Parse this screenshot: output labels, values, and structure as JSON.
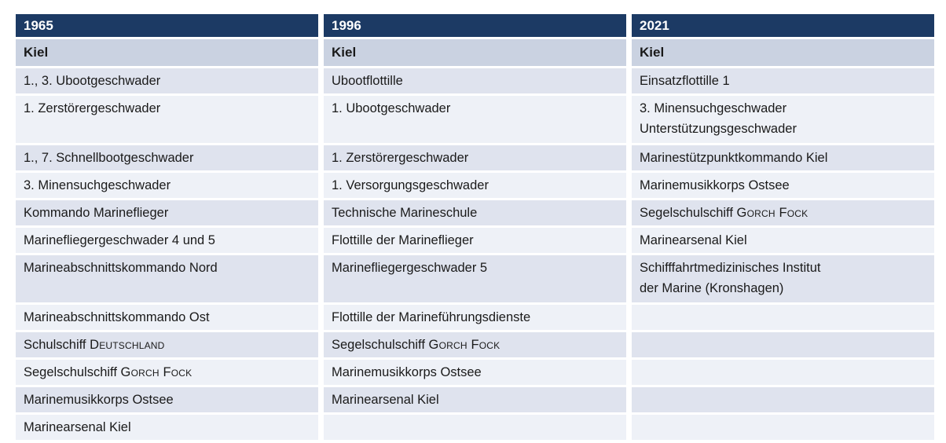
{
  "table": {
    "years": [
      "1965",
      "1996",
      "2021"
    ],
    "locations": [
      "Kiel",
      "Kiel",
      "Kiel"
    ],
    "colors": {
      "header_bg": "#1c3a64",
      "header_text": "#ffffff",
      "location_bg": "#cad2e1",
      "row_dark_bg": "#dfe3ee",
      "row_light_bg": "#eef1f7",
      "text": "#1a1a1a",
      "page_bg": "#ffffff"
    },
    "rows": [
      {
        "tall": false,
        "cells": [
          [
            [
              {
                "t": "1., 3. Ubootgeschwader"
              }
            ]
          ],
          [
            [
              {
                "t": "Ubootflottille"
              }
            ]
          ],
          [
            [
              {
                "t": "Einsatzflottille 1"
              }
            ]
          ]
        ]
      },
      {
        "tall": true,
        "cells": [
          [
            [
              {
                "t": "1. Zerstörergeschwader"
              }
            ]
          ],
          [
            [
              {
                "t": "1. Ubootgeschwader"
              }
            ]
          ],
          [
            [
              {
                "t": "3. Minensuchgeschwader"
              }
            ],
            [
              {
                "t": "Unterstützungsgeschwader"
              }
            ]
          ]
        ]
      },
      {
        "tall": false,
        "cells": [
          [
            [
              {
                "t": "1., 7. Schnellbootgeschwader"
              }
            ]
          ],
          [
            [
              {
                "t": "1. Zerstörergeschwader"
              }
            ]
          ],
          [
            [
              {
                "t": "Marinestützpunktkommando Kiel"
              }
            ]
          ]
        ]
      },
      {
        "tall": false,
        "cells": [
          [
            [
              {
                "t": "3. Minensuchgeschwader"
              }
            ]
          ],
          [
            [
              {
                "t": "1. Versorgungsgeschwader"
              }
            ]
          ],
          [
            [
              {
                "t": "Marinemusikkorps Ostsee"
              }
            ]
          ]
        ]
      },
      {
        "tall": false,
        "cells": [
          [
            [
              {
                "t": "Kommando Marineflieger"
              }
            ]
          ],
          [
            [
              {
                "t": "Technische Marineschule"
              }
            ]
          ],
          [
            [
              {
                "t": "Segelschulschiff "
              },
              {
                "t": "Gorch Fock",
                "sc": true
              }
            ]
          ]
        ]
      },
      {
        "tall": false,
        "cells": [
          [
            [
              {
                "t": "Marinefliegergeschwader 4 und 5"
              }
            ]
          ],
          [
            [
              {
                "t": "Flottille der Marineflieger"
              }
            ]
          ],
          [
            [
              {
                "t": "Marinearsenal Kiel"
              }
            ]
          ]
        ]
      },
      {
        "tall": true,
        "cells": [
          [
            [
              {
                "t": "Marineabschnittskommando Nord"
              }
            ]
          ],
          [
            [
              {
                "t": "Marinefliegergeschwader 5"
              }
            ]
          ],
          [
            [
              {
                "t": "Schifffahrtmedizinisches Institut"
              }
            ],
            [
              {
                "t": "der Marine (Kronshagen)"
              }
            ]
          ]
        ]
      },
      {
        "tall": false,
        "cells": [
          [
            [
              {
                "t": "Marineabschnittskommando Ost"
              }
            ]
          ],
          [
            [
              {
                "t": "Flottille der Marineführungsdienste"
              }
            ]
          ],
          []
        ]
      },
      {
        "tall": false,
        "cells": [
          [
            [
              {
                "t": "Schulschiff "
              },
              {
                "t": "Deutschland",
                "sc": true
              }
            ]
          ],
          [
            [
              {
                "t": "Segelschulschiff "
              },
              {
                "t": "Gorch Fock",
                "sc": true
              }
            ]
          ],
          []
        ]
      },
      {
        "tall": false,
        "cells": [
          [
            [
              {
                "t": "Segelschulschiff "
              },
              {
                "t": "Gorch Fock",
                "sc": true
              }
            ]
          ],
          [
            [
              {
                "t": "Marinemusikkorps Ostsee"
              }
            ]
          ],
          []
        ]
      },
      {
        "tall": false,
        "cells": [
          [
            [
              {
                "t": "Marinemusikkorps Ostsee"
              }
            ]
          ],
          [
            [
              {
                "t": "Marinearsenal Kiel"
              }
            ]
          ],
          []
        ]
      },
      {
        "tall": false,
        "cells": [
          [
            [
              {
                "t": "Marinearsenal Kiel"
              }
            ]
          ],
          [],
          []
        ]
      }
    ]
  }
}
